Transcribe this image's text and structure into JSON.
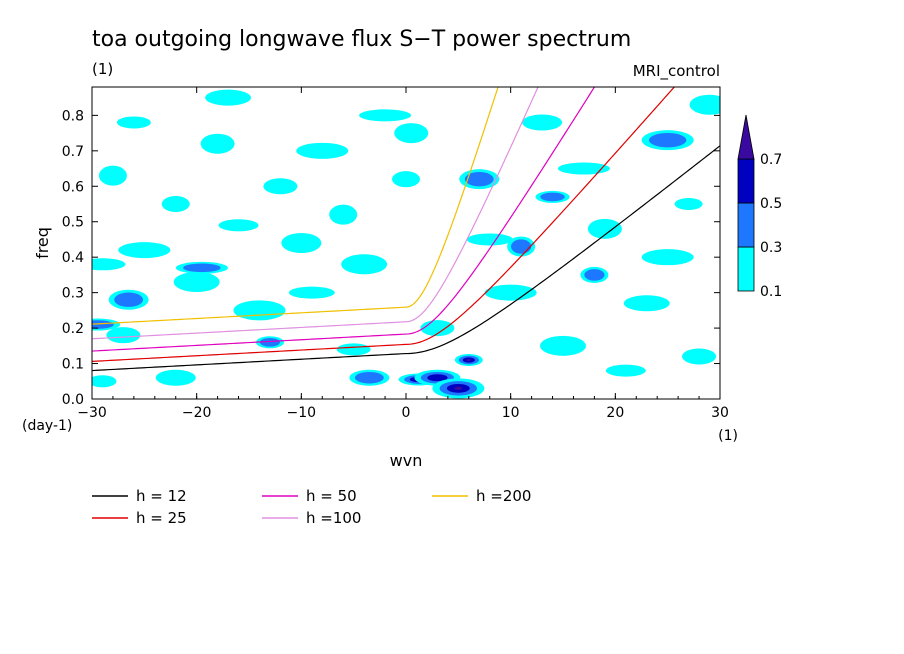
{
  "chart_data": {
    "type": "contour",
    "title": "toa outgoing longwave flux S−T power spectrum",
    "subtitle_left": "(1)",
    "subtitle_right": "MRI_control",
    "xlabel": "wvn",
    "ylabel": "freq",
    "x_unit_label": "(1)",
    "y_unit_label": "(day-1)",
    "xlim": [
      -30,
      30
    ],
    "ylim": [
      0,
      0.88
    ],
    "x_ticks": [
      -30,
      -20,
      -10,
      0,
      10,
      20,
      30
    ],
    "x_tick_labels": [
      "−30",
      "−20",
      "−10",
      "0",
      "10",
      "20",
      "30"
    ],
    "y_ticks": [
      0,
      0.1,
      0.2,
      0.3,
      0.4,
      0.5,
      0.6,
      0.7,
      0.8
    ],
    "y_tick_labels": [
      "0.0",
      "0.1",
      "0.2",
      "0.3",
      "0.4",
      "0.5",
      "0.6",
      "0.7",
      "0.8"
    ],
    "colorbar": {
      "levels": [
        "0.1",
        "0.3",
        "0.5",
        "0.7"
      ],
      "colors": [
        "#00ffff",
        "#1e78ff",
        "#0000c0",
        "#3a0aa0"
      ]
    },
    "dispersion_curves": [
      {
        "label": "h = 12",
        "h": 12,
        "color": "#000000"
      },
      {
        "label": "h = 25",
        "h": 25,
        "color": "#e00000"
      },
      {
        "label": "h = 50",
        "h": 50,
        "color": "#e000c0"
      },
      {
        "label": "h =100",
        "h": 100,
        "color": "#e090e0"
      },
      {
        "label": "h =200",
        "h": 200,
        "color": "#f0c000"
      }
    ],
    "contour_blobs": [
      {
        "wvn": -29,
        "freq": 0.05,
        "level": 0.1
      },
      {
        "wvn": -27,
        "freq": 0.18,
        "level": 0.1
      },
      {
        "wvn": -26.5,
        "freq": 0.28,
        "level": 0.3
      },
      {
        "wvn": -29.5,
        "freq": 0.21,
        "level": 0.3
      },
      {
        "wvn": -25,
        "freq": 0.42,
        "level": 0.1
      },
      {
        "wvn": -28,
        "freq": 0.63,
        "level": 0.1
      },
      {
        "wvn": -26,
        "freq": 0.78,
        "level": 0.1
      },
      {
        "wvn": -22,
        "freq": 0.06,
        "level": 0.1
      },
      {
        "wvn": -20,
        "freq": 0.33,
        "level": 0.1
      },
      {
        "wvn": -19.5,
        "freq": 0.37,
        "level": 0.3
      },
      {
        "wvn": -22,
        "freq": 0.55,
        "level": 0.1
      },
      {
        "wvn": -18,
        "freq": 0.72,
        "level": 0.1
      },
      {
        "wvn": -16,
        "freq": 0.49,
        "level": 0.1
      },
      {
        "wvn": -17,
        "freq": 0.85,
        "level": 0.1
      },
      {
        "wvn": -14,
        "freq": 0.25,
        "level": 0.1
      },
      {
        "wvn": -13,
        "freq": 0.16,
        "level": 0.3
      },
      {
        "wvn": -12,
        "freq": 0.6,
        "level": 0.1
      },
      {
        "wvn": -10,
        "freq": 0.44,
        "level": 0.1
      },
      {
        "wvn": -9,
        "freq": 0.3,
        "level": 0.1
      },
      {
        "wvn": -8,
        "freq": 0.7,
        "level": 0.1
      },
      {
        "wvn": -6,
        "freq": 0.52,
        "level": 0.1
      },
      {
        "wvn": -5,
        "freq": 0.14,
        "level": 0.1
      },
      {
        "wvn": -3.5,
        "freq": 0.06,
        "level": 0.3
      },
      {
        "wvn": -4,
        "freq": 0.38,
        "level": 0.1
      },
      {
        "wvn": -2,
        "freq": 0.8,
        "level": 0.1
      },
      {
        "wvn": 0,
        "freq": 0.62,
        "level": 0.1
      },
      {
        "wvn": 0.5,
        "freq": 0.75,
        "level": 0.1
      },
      {
        "wvn": 1.2,
        "freq": 0.055,
        "level": 0.5
      },
      {
        "wvn": 3,
        "freq": 0.06,
        "level": 0.5
      },
      {
        "wvn": 5,
        "freq": 0.03,
        "level": 0.7
      },
      {
        "wvn": 6,
        "freq": 0.11,
        "level": 0.7
      },
      {
        "wvn": 3,
        "freq": 0.2,
        "level": 0.1
      },
      {
        "wvn": 7,
        "freq": 0.62,
        "level": 0.3
      },
      {
        "wvn": 8,
        "freq": 0.45,
        "level": 0.1
      },
      {
        "wvn": 10,
        "freq": 0.3,
        "level": 0.1
      },
      {
        "wvn": 11,
        "freq": 0.43,
        "level": 0.3
      },
      {
        "wvn": 14,
        "freq": 0.57,
        "level": 0.3
      },
      {
        "wvn": 13,
        "freq": 0.78,
        "level": 0.1
      },
      {
        "wvn": 15,
        "freq": 0.15,
        "level": 0.1
      },
      {
        "wvn": 17,
        "freq": 0.65,
        "level": 0.1
      },
      {
        "wvn": 18,
        "freq": 0.35,
        "level": 0.3
      },
      {
        "wvn": 19,
        "freq": 0.48,
        "level": 0.1
      },
      {
        "wvn": 21,
        "freq": 0.08,
        "level": 0.1
      },
      {
        "wvn": 23,
        "freq": 0.27,
        "level": 0.1
      },
      {
        "wvn": 25,
        "freq": 0.73,
        "level": 0.3
      },
      {
        "wvn": 27,
        "freq": 0.55,
        "level": 0.1
      },
      {
        "wvn": 28,
        "freq": 0.12,
        "level": 0.1
      },
      {
        "wvn": 29,
        "freq": 0.83,
        "level": 0.1
      },
      {
        "wvn": -29,
        "freq": 0.38,
        "level": 0.1
      },
      {
        "wvn": 25,
        "freq": 0.4,
        "level": 0.1
      }
    ]
  }
}
